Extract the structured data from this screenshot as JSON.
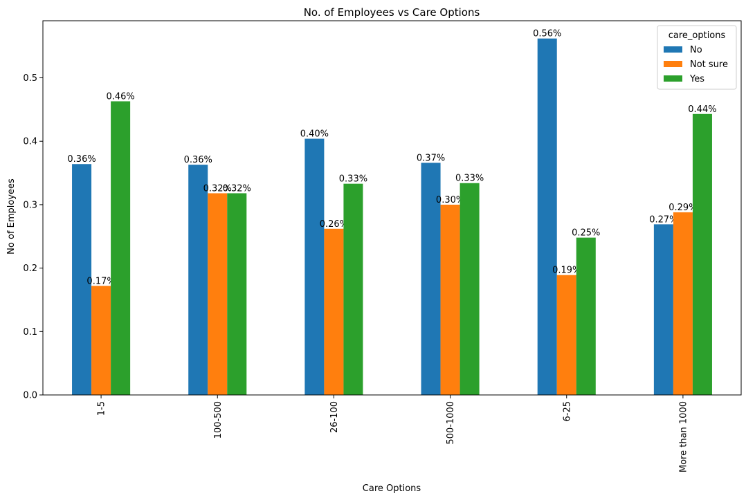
{
  "chart_data": {
    "type": "bar",
    "title": "No. of Employees vs Care Options",
    "xlabel": "Care Options",
    "ylabel": "No of Employees",
    "categories": [
      "1-5",
      "100-500",
      "26-100",
      "500-1000",
      "6-25",
      "More than 1000"
    ],
    "series": [
      {
        "name": "No",
        "color": "#1f77b4",
        "values": [
          0.364,
          0.363,
          0.404,
          0.366,
          0.562,
          0.269
        ],
        "labels": [
          "0.36%",
          "0.36%",
          "0.40%",
          "0.37%",
          "0.56%",
          "0.27%"
        ]
      },
      {
        "name": "Not sure",
        "color": "#ff7f0e",
        "values": [
          0.172,
          0.318,
          0.262,
          0.3,
          0.189,
          0.288
        ],
        "labels": [
          "0.17%",
          "0.32%",
          "0.26%",
          "0.30%",
          "0.19%",
          "0.29%"
        ]
      },
      {
        "name": "Yes",
        "color": "#2ca02c",
        "values": [
          0.463,
          0.318,
          0.333,
          0.334,
          0.248,
          0.443
        ],
        "labels": [
          "0.46%",
          "0.32%",
          "0.33%",
          "0.33%",
          "0.25%",
          "0.44%"
        ]
      }
    ],
    "ylim": [
      0,
      0.59
    ],
    "yticks": [
      0.0,
      0.1,
      0.2,
      0.3,
      0.4,
      0.5
    ],
    "ytick_labels": [
      "0.0",
      "0.1",
      "0.2",
      "0.3",
      "0.4",
      "0.5"
    ],
    "legend": {
      "title": "care_options",
      "position": "top-right"
    },
    "grid": false
  }
}
